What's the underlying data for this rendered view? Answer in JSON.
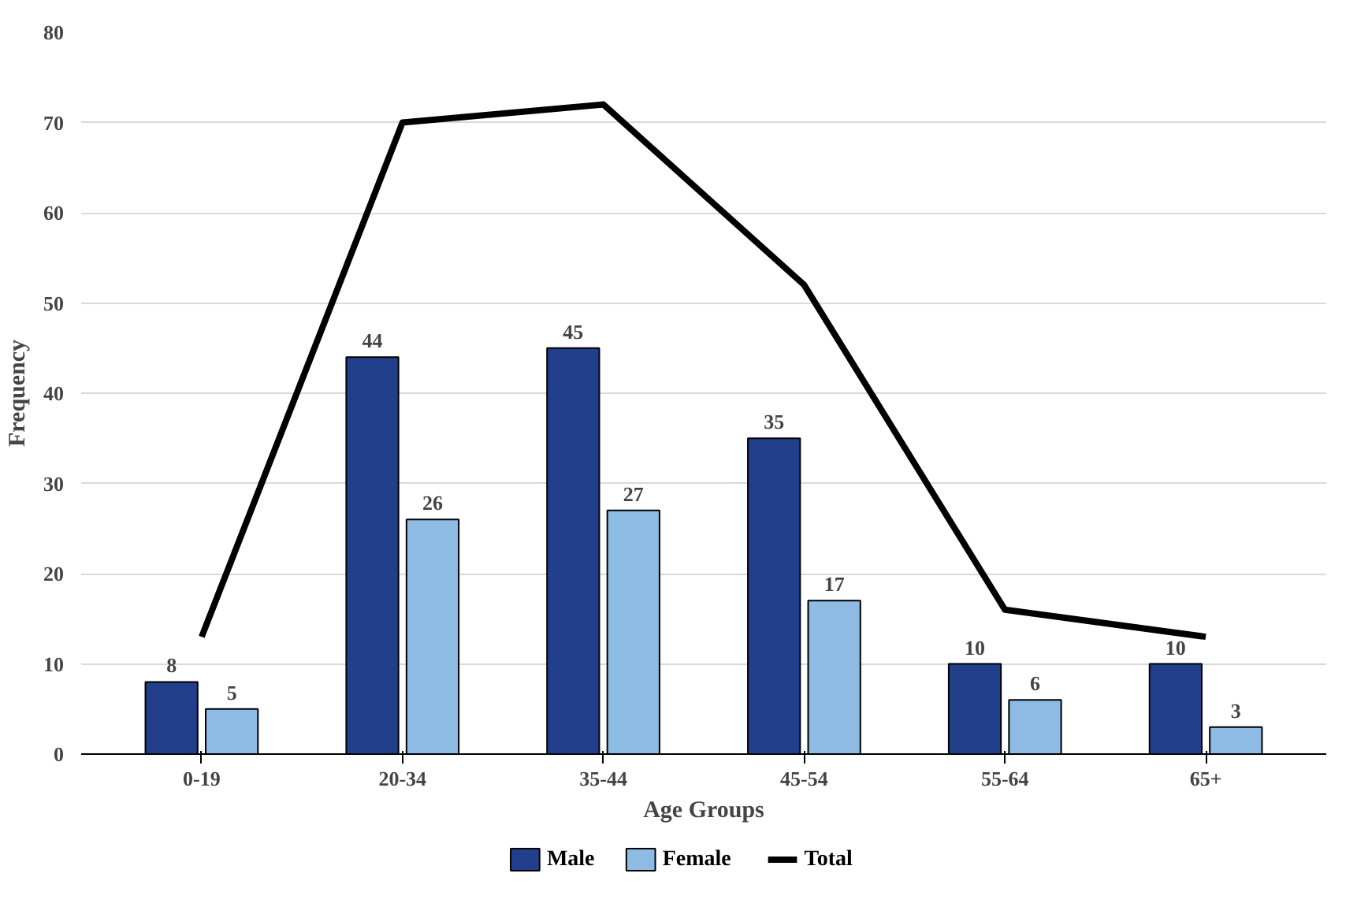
{
  "chart_data": {
    "type": "bar",
    "xlabel": "Age Groups",
    "ylabel": "Frequency",
    "categories": [
      "0-19",
      "20-34",
      "35-44",
      "45-54",
      "55-64",
      "65+"
    ],
    "series": [
      {
        "name": "Male",
        "color": "#213f8b",
        "values": [
          8,
          44,
          45,
          35,
          10,
          10
        ],
        "data_labels": true
      },
      {
        "name": "Female",
        "color": "#8dbbe4",
        "values": [
          5,
          26,
          27,
          17,
          6,
          3
        ],
        "data_labels": true
      },
      {
        "name": "Total",
        "type": "line",
        "color": "#000000",
        "values": [
          13,
          70,
          72,
          52,
          16,
          13
        ]
      }
    ],
    "ylim": [
      0,
      80
    ],
    "yticks": [
      0,
      10,
      20,
      30,
      40,
      50,
      60,
      70,
      80
    ],
    "grid": "y",
    "legend": "bottom"
  }
}
